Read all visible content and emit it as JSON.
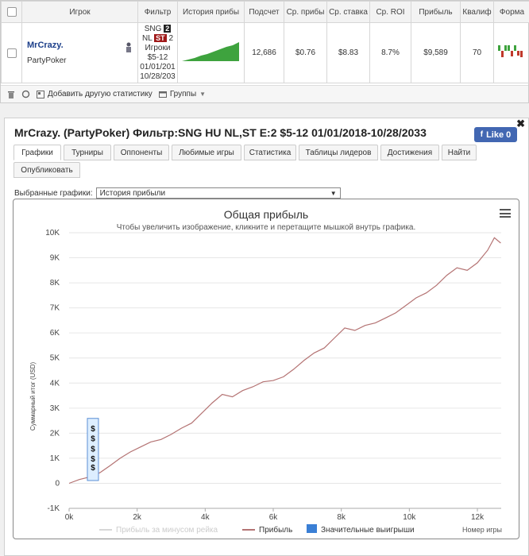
{
  "stats_table": {
    "headers": [
      "Игрок",
      "Фильтр",
      "История прибы",
      "Подсчет",
      "Ср. прибы",
      "Ср. ставка",
      "Ср. ROI",
      "Прибыль",
      "Квалиф",
      "Форма"
    ],
    "row": {
      "player_name": "MrCrazy.",
      "site": "PartyPoker",
      "filter_line1": "SNG",
      "filter_badge1": "2",
      "filter_line2": "NL",
      "filter_badge2": "ST",
      "filter_badge3": "2",
      "filter_line3": "Игроки",
      "filter_line4": "$5-12",
      "filter_line5": "01/01/201",
      "filter_line6": "10/28/203",
      "count": "12,686",
      "avg_profit": "$0.76",
      "avg_stake": "$8.83",
      "avg_roi": "8.7%",
      "profit": "$9,589",
      "qualif": "70"
    }
  },
  "toolbar": {
    "add_stat_label": "Добавить другую статистику",
    "groups_label": "Группы"
  },
  "main": {
    "title": "MrCrazy. (PartyPoker) Фильтр:SNG HU NL,ST E:2 $5-12 01/01/2018-10/28/2033",
    "like_label": "Like 0",
    "tabs": [
      "Графики",
      "Турниры",
      "Оппоненты",
      "Любимые игры",
      "Статистика",
      "Таблицы лидеров",
      "Достижения",
      "Найти",
      "Опубликовать"
    ],
    "select_label": "Выбранные графики:",
    "select_value": "История прибыли"
  },
  "chart_data": {
    "type": "line",
    "title": "Общая прибыль",
    "subtitle": "Чтобы увеличить изображение, кликните и перетащите мышкой внутрь графика.",
    "ylabel": "Суммарный итог (USD)",
    "xlabel": "Номер игры",
    "x_ticks": [
      "0k",
      "2k",
      "4k",
      "6k",
      "8k",
      "10k",
      "12k"
    ],
    "y_ticks": [
      "-1K",
      "0",
      "1K",
      "2K",
      "3K",
      "4K",
      "5K",
      "6K",
      "7K",
      "8K",
      "9K",
      "10K"
    ],
    "xlim": [
      0,
      12700
    ],
    "ylim": [
      -1000,
      10000
    ],
    "legend": [
      "Прибыль за минусом рейка",
      "Прибыль",
      "Значительные выигрыши"
    ],
    "legend_placement": "bottom",
    "series": [
      {
        "name": "Прибыль",
        "color": "#b47373",
        "x": [
          0,
          300,
          600,
          900,
          1200,
          1500,
          1800,
          2100,
          2400,
          2700,
          3000,
          3300,
          3600,
          3900,
          4200,
          4500,
          4800,
          5100,
          5400,
          5700,
          6000,
          6300,
          6600,
          6900,
          7200,
          7500,
          7800,
          8100,
          8400,
          8700,
          9000,
          9300,
          9600,
          9900,
          10200,
          10500,
          10800,
          11100,
          11400,
          11700,
          12000,
          12300,
          12500,
          12686
        ],
        "values": [
          0,
          150,
          250,
          420,
          700,
          1000,
          1250,
          1450,
          1650,
          1750,
          1950,
          2200,
          2400,
          2800,
          3200,
          3550,
          3450,
          3700,
          3850,
          4050,
          4100,
          4250,
          4550,
          4900,
          5200,
          5400,
          5800,
          6200,
          6100,
          6300,
          6400,
          6600,
          6800,
          7100,
          7400,
          7600,
          7900,
          8300,
          8600,
          8500,
          8800,
          9300,
          9800,
          9589
        ]
      }
    ],
    "big_wins_marker_label": "$"
  },
  "colors": {
    "accent": "#4267b2",
    "profit_line": "#b47373",
    "big_wins": "#3a7fd5",
    "spark_green": "#3ea33e"
  }
}
